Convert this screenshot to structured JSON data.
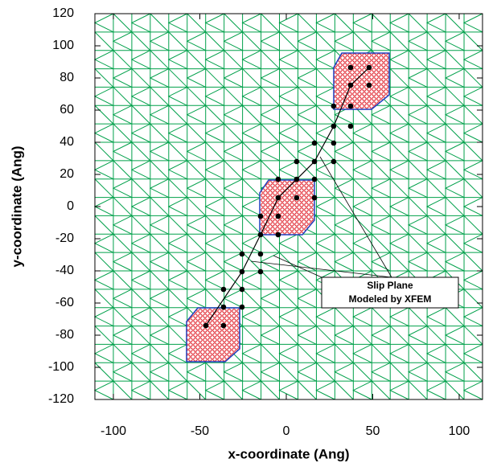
{
  "chart_data": {
    "type": "scatter",
    "x_label": "x-coordinate (Ang)",
    "y_label": "y-coordinate (Ang)",
    "annotation": [
      "Slip Plane",
      "Modeled by XFEM"
    ],
    "xlim": [
      -110.7,
      113.5
    ],
    "ylim": [
      -120,
      120
    ],
    "xticks": [
      -100,
      -50,
      0,
      50,
      100
    ],
    "yticks": [
      -120,
      -100,
      -80,
      -60,
      -40,
      -20,
      0,
      20,
      40,
      60,
      80,
      100,
      120
    ],
    "color": "#000000",
    "mesh_color": "#00a04a",
    "x": [
      37.2,
      47.9,
      37.2,
      47.9,
      27.4,
      37.2,
      27.4,
      37.2,
      27.4,
      16.3,
      16.3,
      27.4,
      16.3,
      6,
      -4.7,
      6,
      -4.7,
      6,
      16.3,
      -14.9,
      -4.7,
      -4.7,
      -14.9,
      -14.9,
      -25.6,
      -14.9,
      -25.6,
      -36.3,
      -25.6,
      -36.3,
      -25.6,
      -46.5,
      -36.3
    ],
    "values": [
      86.5,
      86.5,
      75.5,
      75.5,
      62.5,
      62.5,
      50,
      50,
      39.5,
      39.5,
      28,
      28,
      17,
      17,
      17,
      28,
      5.5,
      5.5,
      5.5,
      -6,
      -6,
      -17.5,
      -17.5,
      -29.5,
      -29.5,
      -40.5,
      -40.5,
      -51.5,
      -51.5,
      -62.5,
      -62.5,
      -74,
      -74
    ]
  }
}
